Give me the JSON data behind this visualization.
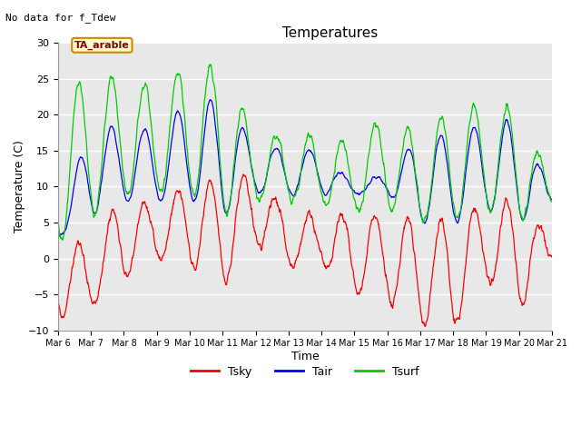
{
  "title": "Temperatures",
  "xlabel": "Time",
  "ylabel": "Temperature (C)",
  "note": "No data for f_Tdew",
  "box_label": "TA_arable",
  "ylim": [
    -10,
    30
  ],
  "yticks": [
    -10,
    -5,
    0,
    5,
    10,
    15,
    20,
    25,
    30
  ],
  "xtick_labels": [
    "Mar 6",
    "Mar 7",
    "Mar 8",
    "Mar 9",
    "Mar 10",
    "Mar 11",
    "Mar 12",
    "Mar 13",
    "Mar 14",
    "Mar 15",
    "Mar 16",
    "Mar 17",
    "Mar 18",
    "Mar 19",
    "Mar 20",
    "Mar 21"
  ],
  "colors": {
    "Tsky": "#ff0000",
    "Tair": "#0000ff",
    "Tsurf": "#00cc00"
  },
  "background_color": "#e8e8e8",
  "n_days": 15
}
